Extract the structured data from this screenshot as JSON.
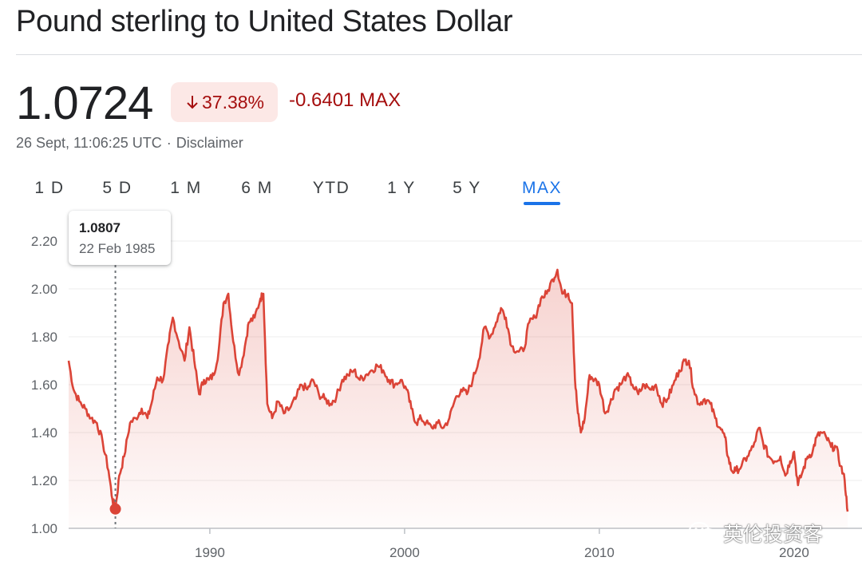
{
  "header": {
    "title": "Pound sterling to United States Dollar"
  },
  "quote": {
    "price": "1.0724",
    "change_percent": "37.38%",
    "change_abs": "-0.6401 MAX",
    "timestamp": "26 Sept, 11:06:25 UTC",
    "separator": "·",
    "disclaimer": "Disclaimer"
  },
  "range_tabs": {
    "items": [
      "1 D",
      "5 D",
      "1 M",
      "6 M",
      "YTD",
      "1 Y",
      "5 Y",
      "MAX"
    ],
    "active": "MAX"
  },
  "tooltip": {
    "value": "1.0807",
    "date": "22 Feb 1985",
    "x": 1985.15,
    "y": 1.0807
  },
  "watermark": {
    "text": "英伦投资客",
    "icon": "wechat-icon"
  },
  "colors": {
    "line": "#db4437",
    "negative": "#a50e0e",
    "negative_bg": "#fce8e6",
    "active_tab": "#1a73e8"
  },
  "chart_data": {
    "type": "area",
    "title": "",
    "xlabel": "",
    "ylabel": "",
    "xlim": [
      1982.75,
      2022.75
    ],
    "ylim": [
      1.0,
      2.2
    ],
    "yticks": [
      1.0,
      1.2,
      1.4,
      1.6,
      1.8,
      2.0,
      2.2
    ],
    "ytick_labels": [
      "1.00",
      "1.20",
      "1.40",
      "1.60",
      "1.80",
      "2.00",
      "2.20"
    ],
    "xticks": [
      1990,
      2000,
      2010,
      2020
    ],
    "xtick_labels": [
      "1990",
      "2000",
      "2010",
      "2020"
    ],
    "grid": true,
    "series": [
      {
        "values": [
          [
            1982.75,
            1.7
          ],
          [
            1983.0,
            1.58
          ],
          [
            1983.3,
            1.53
          ],
          [
            1983.6,
            1.5
          ],
          [
            1983.9,
            1.46
          ],
          [
            1984.2,
            1.44
          ],
          [
            1984.5,
            1.36
          ],
          [
            1984.8,
            1.24
          ],
          [
            1985.0,
            1.12
          ],
          [
            1985.15,
            1.08
          ],
          [
            1985.35,
            1.22
          ],
          [
            1985.6,
            1.3
          ],
          [
            1985.9,
            1.44
          ],
          [
            1986.2,
            1.46
          ],
          [
            1986.5,
            1.5
          ],
          [
            1986.8,
            1.46
          ],
          [
            1987.0,
            1.52
          ],
          [
            1987.3,
            1.63
          ],
          [
            1987.6,
            1.62
          ],
          [
            1987.9,
            1.78
          ],
          [
            1988.1,
            1.88
          ],
          [
            1988.4,
            1.78
          ],
          [
            1988.7,
            1.7
          ],
          [
            1988.95,
            1.84
          ],
          [
            1989.2,
            1.7
          ],
          [
            1989.45,
            1.56
          ],
          [
            1989.7,
            1.62
          ],
          [
            1989.95,
            1.62
          ],
          [
            1990.2,
            1.64
          ],
          [
            1990.45,
            1.74
          ],
          [
            1990.7,
            1.94
          ],
          [
            1990.95,
            1.98
          ],
          [
            1991.2,
            1.78
          ],
          [
            1991.5,
            1.64
          ],
          [
            1991.8,
            1.76
          ],
          [
            1992.0,
            1.86
          ],
          [
            1992.3,
            1.88
          ],
          [
            1992.6,
            1.96
          ],
          [
            1992.75,
            1.98
          ],
          [
            1992.95,
            1.52
          ],
          [
            1993.2,
            1.46
          ],
          [
            1993.5,
            1.53
          ],
          [
            1993.8,
            1.48
          ],
          [
            1994.1,
            1.5
          ],
          [
            1994.4,
            1.54
          ],
          [
            1994.7,
            1.6
          ],
          [
            1995.0,
            1.58
          ],
          [
            1995.3,
            1.62
          ],
          [
            1995.6,
            1.56
          ],
          [
            1995.9,
            1.54
          ],
          [
            1996.2,
            1.52
          ],
          [
            1996.5,
            1.55
          ],
          [
            1996.8,
            1.62
          ],
          [
            1997.1,
            1.64
          ],
          [
            1997.4,
            1.66
          ],
          [
            1997.7,
            1.62
          ],
          [
            1998.0,
            1.64
          ],
          [
            1998.3,
            1.66
          ],
          [
            1998.6,
            1.68
          ],
          [
            1998.9,
            1.66
          ],
          [
            1999.2,
            1.62
          ],
          [
            1999.5,
            1.6
          ],
          [
            1999.8,
            1.62
          ],
          [
            2000.1,
            1.58
          ],
          [
            2000.35,
            1.5
          ],
          [
            2000.6,
            1.44
          ],
          [
            2000.85,
            1.46
          ],
          [
            2001.1,
            1.44
          ],
          [
            2001.4,
            1.42
          ],
          [
            2001.7,
            1.44
          ],
          [
            2002.0,
            1.42
          ],
          [
            2002.3,
            1.46
          ],
          [
            2002.6,
            1.54
          ],
          [
            2002.9,
            1.58
          ],
          [
            2003.2,
            1.56
          ],
          [
            2003.5,
            1.62
          ],
          [
            2003.8,
            1.7
          ],
          [
            2004.1,
            1.84
          ],
          [
            2004.4,
            1.8
          ],
          [
            2004.7,
            1.86
          ],
          [
            2004.95,
            1.92
          ],
          [
            2005.2,
            1.88
          ],
          [
            2005.5,
            1.76
          ],
          [
            2005.8,
            1.74
          ],
          [
            2006.1,
            1.74
          ],
          [
            2006.4,
            1.86
          ],
          [
            2006.7,
            1.88
          ],
          [
            2007.0,
            1.96
          ],
          [
            2007.3,
            1.98
          ],
          [
            2007.6,
            2.04
          ],
          [
            2007.85,
            2.08
          ],
          [
            2008.1,
            1.98
          ],
          [
            2008.4,
            1.98
          ],
          [
            2008.6,
            1.94
          ],
          [
            2008.75,
            1.62
          ],
          [
            2008.9,
            1.48
          ],
          [
            2009.05,
            1.4
          ],
          [
            2009.25,
            1.46
          ],
          [
            2009.5,
            1.64
          ],
          [
            2009.75,
            1.62
          ],
          [
            2010.0,
            1.6
          ],
          [
            2010.3,
            1.48
          ],
          [
            2010.55,
            1.52
          ],
          [
            2010.8,
            1.58
          ],
          [
            2011.1,
            1.6
          ],
          [
            2011.4,
            1.64
          ],
          [
            2011.7,
            1.6
          ],
          [
            2012.0,
            1.56
          ],
          [
            2012.3,
            1.6
          ],
          [
            2012.6,
            1.58
          ],
          [
            2012.9,
            1.6
          ],
          [
            2013.2,
            1.52
          ],
          [
            2013.5,
            1.54
          ],
          [
            2013.8,
            1.6
          ],
          [
            2014.1,
            1.66
          ],
          [
            2014.4,
            1.7
          ],
          [
            2014.6,
            1.7
          ],
          [
            2014.85,
            1.58
          ],
          [
            2015.1,
            1.52
          ],
          [
            2015.4,
            1.54
          ],
          [
            2015.7,
            1.52
          ],
          [
            2015.95,
            1.46
          ],
          [
            2016.2,
            1.42
          ],
          [
            2016.45,
            1.38
          ],
          [
            2016.6,
            1.3
          ],
          [
            2016.8,
            1.24
          ],
          [
            2017.0,
            1.24
          ],
          [
            2017.3,
            1.26
          ],
          [
            2017.6,
            1.3
          ],
          [
            2017.9,
            1.34
          ],
          [
            2018.2,
            1.42
          ],
          [
            2018.4,
            1.36
          ],
          [
            2018.7,
            1.3
          ],
          [
            2019.0,
            1.28
          ],
          [
            2019.3,
            1.3
          ],
          [
            2019.55,
            1.22
          ],
          [
            2019.8,
            1.28
          ],
          [
            2020.0,
            1.32
          ],
          [
            2020.2,
            1.18
          ],
          [
            2020.45,
            1.24
          ],
          [
            2020.7,
            1.3
          ],
          [
            2020.95,
            1.32
          ],
          [
            2021.15,
            1.38
          ],
          [
            2021.4,
            1.4
          ],
          [
            2021.65,
            1.38
          ],
          [
            2021.9,
            1.34
          ],
          [
            2022.15,
            1.34
          ],
          [
            2022.4,
            1.26
          ],
          [
            2022.6,
            1.2
          ],
          [
            2022.75,
            1.07
          ]
        ]
      }
    ]
  }
}
